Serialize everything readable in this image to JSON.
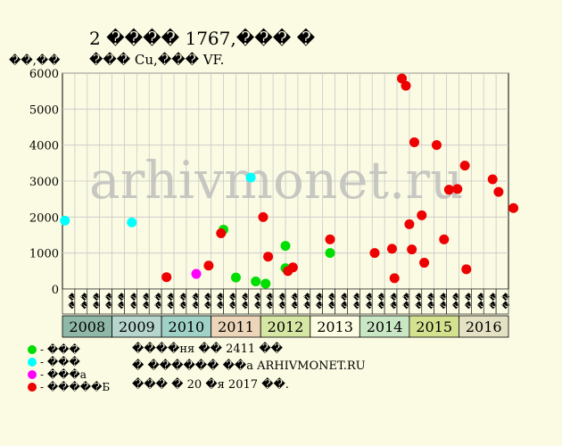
{
  "chart_data": {
    "type": "scatter",
    "title": "2 ���� 1767,��� �",
    "subtitle": "��� Cu,��� VF.",
    "ylabel": "��,��",
    "ylim": [
      0,
      6000
    ],
    "yticks": [
      0,
      1000,
      2000,
      3000,
      4000,
      5000,
      6000
    ],
    "grid": true,
    "x_axis": {
      "start_year": 2008,
      "end_year": 2016,
      "quarters_per_year": 4,
      "quarter_labels": [
        "��",
        "��",
        "��",
        "��"
      ],
      "years": [
        {
          "label": "2008",
          "color": "#8fb8a8"
        },
        {
          "label": "2009",
          "color": "#b6d5cd"
        },
        {
          "label": "2010",
          "color": "#9fd1c6"
        },
        {
          "label": "2011",
          "color": "#ecd5b9"
        },
        {
          "label": "2012",
          "color": "#d6e6a3"
        },
        {
          "label": "2013",
          "color": "#fdfde3"
        },
        {
          "label": "2014",
          "color": "#c9e7c4"
        },
        {
          "label": "2015",
          "color": "#d4e28f"
        },
        {
          "label": "2016",
          "color": "#e5e1c4"
        }
      ]
    },
    "series": [
      {
        "name": "- ���",
        "color": "#00dd00",
        "points": [
          {
            "t": 2011.25,
            "y": 1650
          },
          {
            "t": 2011.5,
            "y": 320
          },
          {
            "t": 2011.9,
            "y": 210
          },
          {
            "t": 2012.1,
            "y": 150
          },
          {
            "t": 2012.5,
            "y": 580
          },
          {
            "t": 2012.5,
            "y": 1200
          },
          {
            "t": 2013.4,
            "y": 1000
          }
        ]
      },
      {
        "name": "- ���",
        "color": "#00ffff",
        "points": [
          {
            "t": 2008.05,
            "y": 1900
          },
          {
            "t": 2009.4,
            "y": 1850
          },
          {
            "t": 2011.8,
            "y": 3100
          }
        ]
      },
      {
        "name": "- ���а",
        "color": "#ff00ff",
        "points": [
          {
            "t": 2010.7,
            "y": 420
          }
        ]
      },
      {
        "name": "- �����Б",
        "color": "#ee0000",
        "points": [
          {
            "t": 2010.1,
            "y": 330
          },
          {
            "t": 2010.95,
            "y": 650
          },
          {
            "t": 2011.2,
            "y": 1550
          },
          {
            "t": 2012.05,
            "y": 2000
          },
          {
            "t": 2012.15,
            "y": 900
          },
          {
            "t": 2012.55,
            "y": 500
          },
          {
            "t": 2012.65,
            "y": 600
          },
          {
            "t": 2013.4,
            "y": 1380
          },
          {
            "t": 2014.3,
            "y": 1000
          },
          {
            "t": 2014.65,
            "y": 1120
          },
          {
            "t": 2014.7,
            "y": 300
          },
          {
            "t": 2014.85,
            "y": 5850
          },
          {
            "t": 2014.93,
            "y": 5650
          },
          {
            "t": 2015.0,
            "y": 1800
          },
          {
            "t": 2015.05,
            "y": 1100
          },
          {
            "t": 2015.1,
            "y": 4080
          },
          {
            "t": 2015.25,
            "y": 2050
          },
          {
            "t": 2015.3,
            "y": 730
          },
          {
            "t": 2015.55,
            "y": 4000
          },
          {
            "t": 2015.7,
            "y": 1380
          },
          {
            "t": 2015.8,
            "y": 2760
          },
          {
            "t": 2015.97,
            "y": 2780
          },
          {
            "t": 2016.12,
            "y": 3430
          },
          {
            "t": 2016.15,
            "y": 550
          },
          {
            "t": 2016.68,
            "y": 3050
          },
          {
            "t": 2016.8,
            "y": 2700
          },
          {
            "t": 2017.1,
            "y": 2250
          }
        ]
      }
    ],
    "annotations": {
      "watermark": "arhivmonet.ru",
      "footer": [
        "����ня �� 2411 ��",
        "� ������ ��а ARHIVMONET.RU",
        "��� � 20 �я 2017 ��."
      ]
    }
  }
}
